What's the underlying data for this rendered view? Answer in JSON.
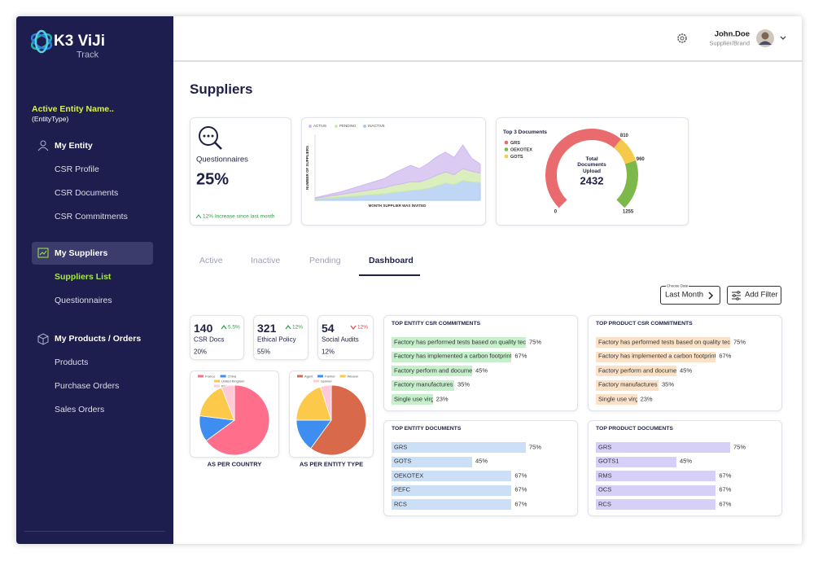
{
  "sidebar": {
    "logo": {
      "brand": "K3 ViJi",
      "product": "Track"
    },
    "entity": {
      "name": "Active Entity Name..",
      "type": "(EntityType)"
    },
    "sections": [
      {
        "title": "My Entity",
        "items": [
          "CSR Profile",
          "CSR Documents",
          "CSR Commitments"
        ]
      },
      {
        "title": "My Suppliers",
        "items": [
          "Suppliers List",
          "Questionnaires"
        ],
        "selected": true,
        "selected_item": 0
      },
      {
        "title": "My Products / Orders",
        "items": [
          "Products",
          "Purchase Orders",
          "Sales Orders"
        ]
      }
    ]
  },
  "header": {
    "user": "John.Doe",
    "role": "Supplier/Brand"
  },
  "page_title": "Suppliers",
  "questionnaire_card": {
    "label": "Questionnaires",
    "value": "25%",
    "note": "12% Increase since last month"
  },
  "area_chart": {
    "type": "area",
    "stacked": true,
    "y_label": "NUMBER OF SUPPLIERS",
    "x_label": "MONTH SUPPLIER WAS INVITED",
    "ylim": [
      0,
      100
    ],
    "series": [
      {
        "name": "ACTIVE",
        "color": "#cfb9ef",
        "values": [
          1,
          2,
          3,
          4,
          6,
          8,
          10,
          12,
          14,
          18,
          22,
          25,
          20,
          24,
          28,
          30,
          26,
          36,
          20,
          14
        ]
      },
      {
        "name": "PENDING",
        "color": "#cfeaa8",
        "values": [
          1,
          2,
          3,
          4,
          5,
          6,
          7,
          8,
          9,
          11,
          12,
          13,
          12,
          14,
          16,
          17,
          15,
          18,
          16,
          14
        ]
      },
      {
        "name": "INACTIVE",
        "color": "#a9c9f1",
        "values": [
          2,
          3,
          4,
          5,
          6,
          7,
          8,
          9,
          10,
          12,
          13,
          15,
          16,
          18,
          22,
          26,
          24,
          30,
          28,
          27
        ]
      }
    ]
  },
  "gauge": {
    "type": "gauge",
    "title": "Top 3 Documents",
    "center_label": "Total Documents Upload",
    "total": "2432",
    "range": [
      0,
      1255
    ],
    "ticks": [
      0,
      810,
      960,
      1255
    ],
    "segments": [
      {
        "name": "GRS",
        "color": "#ea6b6d",
        "range": [
          0,
          810
        ]
      },
      {
        "name": "OEKOTEX",
        "color": "#7cb94a",
        "range": [
          960,
          1255
        ]
      },
      {
        "name": "GOTS",
        "color": "#f5c94a",
        "range": [
          810,
          960
        ]
      }
    ]
  },
  "tabs": {
    "items": [
      "Active",
      "Inactive",
      "Pending",
      "Dashboard"
    ],
    "selected": 3
  },
  "filters": {
    "date_label": "Choose Date",
    "date_value": "Last Month",
    "add": "Add Filter"
  },
  "stats": [
    {
      "value": "140",
      "change": "5.5%",
      "direction": "up",
      "label": "CSR Docs",
      "share": "20%"
    },
    {
      "value": "321",
      "change": "12%",
      "direction": "up",
      "label": "Ethical Policy",
      "share": "55%"
    },
    {
      "value": "54",
      "change": "12%",
      "direction": "down",
      "label": "Social Audits",
      "share": "12%"
    }
  ],
  "pies": [
    {
      "type": "pie",
      "caption": "AS PER COUNTRY",
      "categories": [
        "France",
        "China",
        "United Kingdom",
        "Bangladesh"
      ],
      "values": [
        65,
        12,
        17,
        6
      ],
      "colors": [
        "#ff6f8b",
        "#3d8ef0",
        "#fdc94b",
        "#ffc9d8"
      ]
    },
    {
      "type": "pie",
      "caption": "AS PER ENTITY TYPE",
      "categories": [
        "Agent",
        "Farmer",
        "Weaver",
        "Spinner"
      ],
      "values": [
        60,
        15,
        20,
        5
      ],
      "colors": [
        "#d9694b",
        "#3d8ef0",
        "#fdc94b",
        "#ffc9d8"
      ]
    }
  ],
  "panels": [
    {
      "title": "TOP ENTITY CSR COMMITMENTS",
      "color": "#c6efcb",
      "items": [
        {
          "label": "Factory has performed tests based on quality technical",
          "value": 75,
          "value_label": "75%"
        },
        {
          "label": "Factory has implemented a carbon footprint",
          "value": 67,
          "value_label": "67%"
        },
        {
          "label": "Factory perform and documents wastewater.....",
          "value": 45,
          "value_label": "45%"
        },
        {
          "label": "Factory manufactures organic.....",
          "value": 35,
          "value_label": "35%"
        },
        {
          "label": "Single use virgin plastic.......",
          "value": 23,
          "value_label": "23%"
        }
      ]
    },
    {
      "title": "TOP PRODUCT CSR COMMITMENTS",
      "color": "#fbe1c6",
      "items": [
        {
          "label": "Factory has performed tests based on quality technical",
          "value": 75,
          "value_label": "75%"
        },
        {
          "label": "Factory has implemented a carbon footprint",
          "value": 67,
          "value_label": "67%"
        },
        {
          "label": "Factory perform and documents wastewater.....",
          "value": 45,
          "value_label": "45%"
        },
        {
          "label": "Factory manufactures organic.....",
          "value": 35,
          "value_label": "35%"
        },
        {
          "label": "Single use virgin plastic.......",
          "value": 23,
          "value_label": "23%"
        }
      ]
    },
    {
      "title": "TOP ENTITY DOCUMENTS",
      "color": "#cbdff6",
      "items": [
        {
          "label": "GRS",
          "value": 75,
          "value_label": "75%"
        },
        {
          "label": "GOTS",
          "value": 45,
          "value_label": "45%"
        },
        {
          "label": "OEKOTEX",
          "value": 67,
          "value_label": "67%"
        },
        {
          "label": "PEFC",
          "value": 67,
          "value_label": "67%"
        },
        {
          "label": "RCS",
          "value": 67,
          "value_label": "67%"
        }
      ]
    },
    {
      "title": "TOP PRODUCT DOCUMENTS",
      "color": "#d6cff7",
      "items": [
        {
          "label": "GRS",
          "value": 75,
          "value_label": "75%"
        },
        {
          "label": "GOTS1",
          "value": 45,
          "value_label": "45%"
        },
        {
          "label": "RMS",
          "value": 67,
          "value_label": "67%"
        },
        {
          "label": "OCS",
          "value": 67,
          "value_label": "67%"
        },
        {
          "label": "RCS",
          "value": 67,
          "value_label": "67%"
        }
      ]
    }
  ]
}
